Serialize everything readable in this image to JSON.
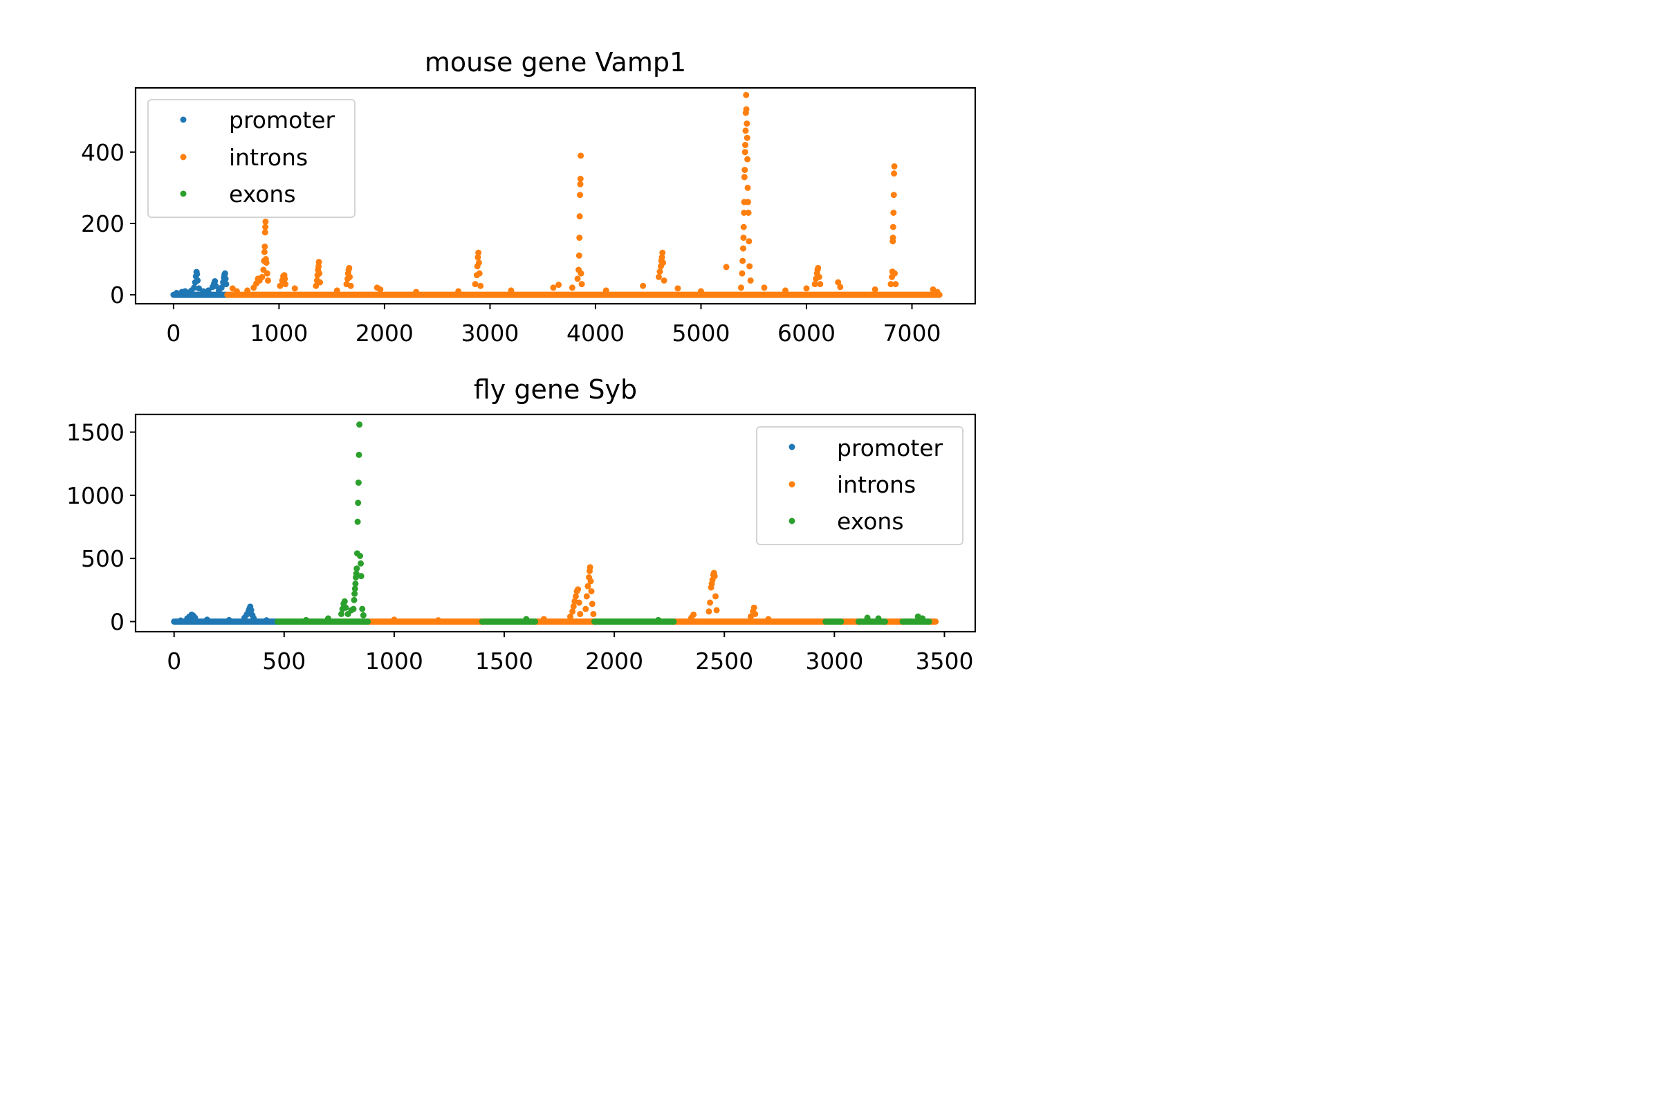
{
  "colors": {
    "promoter": "#1f77b4",
    "introns": "#ff7f0e",
    "exons": "#2ca02c"
  },
  "chart_data": [
    {
      "type": "scatter",
      "title": "mouse gene Vamp1",
      "xlabel": "",
      "ylabel": "",
      "xlim": [
        -360,
        7600
      ],
      "ylim": [
        -25,
        580
      ],
      "xticks": [
        0,
        1000,
        2000,
        3000,
        4000,
        5000,
        6000,
        7000
      ],
      "xtick_labels": [
        "0",
        "1000",
        "2000",
        "3000",
        "4000",
        "5000",
        "6000",
        "7000"
      ],
      "yticks": [
        0,
        200,
        400
      ],
      "ytick_labels": [
        "0",
        "200",
        "400"
      ],
      "grid": false,
      "legend": "upper left",
      "baseline": {
        "promoter": [
          [
            0,
            500
          ]
        ],
        "introns": [
          [
            510,
            7260
          ]
        ],
        "exons": []
      },
      "series": [
        {
          "name": "promoter",
          "color_key": "promoter",
          "points": [
            [
              30,
              5
            ],
            [
              80,
              8
            ],
            [
              110,
              10
            ],
            [
              140,
              6
            ],
            [
              170,
              12
            ],
            [
              195,
              20
            ],
            [
              205,
              35
            ],
            [
              212,
              52
            ],
            [
              218,
              64
            ],
            [
              222,
              58
            ],
            [
              228,
              40
            ],
            [
              240,
              18
            ],
            [
              280,
              10
            ],
            [
              330,
              12
            ],
            [
              370,
              22
            ],
            [
              385,
              32
            ],
            [
              392,
              38
            ],
            [
              400,
              25
            ],
            [
              430,
              12
            ],
            [
              455,
              20
            ],
            [
              470,
              35
            ],
            [
              478,
              48
            ],
            [
              483,
              56
            ],
            [
              488,
              60
            ],
            [
              493,
              45
            ],
            [
              498,
              30
            ]
          ]
        },
        {
          "name": "introns",
          "color_key": "introns",
          "points": [
            [
              560,
              18
            ],
            [
              600,
              10
            ],
            [
              700,
              12
            ],
            [
              760,
              20
            ],
            [
              785,
              32
            ],
            [
              800,
              45
            ],
            [
              815,
              40
            ],
            [
              840,
              50
            ],
            [
              852,
              70
            ],
            [
              858,
              95
            ],
            [
              862,
              120
            ],
            [
              865,
              135
            ],
            [
              868,
              175
            ],
            [
              870,
              190
            ],
            [
              872,
              205
            ],
            [
              875,
              100
            ],
            [
              880,
              90
            ],
            [
              888,
              60
            ],
            [
              895,
              40
            ],
            [
              1010,
              25
            ],
            [
              1030,
              40
            ],
            [
              1040,
              52
            ],
            [
              1050,
              55
            ],
            [
              1055,
              45
            ],
            [
              1060,
              30
            ],
            [
              1150,
              18
            ],
            [
              1350,
              25
            ],
            [
              1360,
              40
            ],
            [
              1365,
              55
            ],
            [
              1370,
              70
            ],
            [
              1375,
              80
            ],
            [
              1378,
              92
            ],
            [
              1382,
              60
            ],
            [
              1388,
              35
            ],
            [
              1550,
              12
            ],
            [
              1640,
              30
            ],
            [
              1650,
              45
            ],
            [
              1655,
              60
            ],
            [
              1660,
              70
            ],
            [
              1665,
              75
            ],
            [
              1670,
              50
            ],
            [
              1680,
              25
            ],
            [
              1930,
              20
            ],
            [
              1960,
              15
            ],
            [
              2300,
              8
            ],
            [
              2700,
              10
            ],
            [
              2860,
              30
            ],
            [
              2875,
              55
            ],
            [
              2880,
              80
            ],
            [
              2885,
              105
            ],
            [
              2890,
              118
            ],
            [
              2895,
              90
            ],
            [
              2900,
              60
            ],
            [
              2910,
              25
            ],
            [
              3200,
              12
            ],
            [
              3600,
              20
            ],
            [
              3650,
              28
            ],
            [
              3780,
              20
            ],
            [
              3830,
              45
            ],
            [
              3840,
              70
            ],
            [
              3845,
              110
            ],
            [
              3848,
              160
            ],
            [
              3850,
              220
            ],
            [
              3853,
              280
            ],
            [
              3856,
              310
            ],
            [
              3858,
              325
            ],
            [
              3860,
              390
            ],
            [
              3863,
              60
            ],
            [
              3870,
              30
            ],
            [
              4100,
              12
            ],
            [
              4450,
              25
            ],
            [
              4600,
              50
            ],
            [
              4610,
              65
            ],
            [
              4620,
              80
            ],
            [
              4625,
              95
            ],
            [
              4630,
              105
            ],
            [
              4635,
              118
            ],
            [
              4640,
              90
            ],
            [
              4650,
              40
            ],
            [
              4780,
              18
            ],
            [
              5000,
              10
            ],
            [
              5240,
              78
            ],
            [
              5380,
              20
            ],
            [
              5390,
              60
            ],
            [
              5395,
              95
            ],
            [
              5400,
              130
            ],
            [
              5403,
              160
            ],
            [
              5405,
              190
            ],
            [
              5408,
              230
            ],
            [
              5410,
              260
            ],
            [
              5412,
              330
            ],
            [
              5415,
              350
            ],
            [
              5418,
              400
            ],
            [
              5420,
              420
            ],
            [
              5423,
              460
            ],
            [
              5425,
              510
            ],
            [
              5428,
              560
            ],
            [
              5430,
              520
            ],
            [
              5435,
              480
            ],
            [
              5438,
              440
            ],
            [
              5440,
              380
            ],
            [
              5443,
              300
            ],
            [
              5446,
              260
            ],
            [
              5450,
              230
            ],
            [
              5455,
              150
            ],
            [
              5460,
              80
            ],
            [
              5470,
              40
            ],
            [
              5600,
              20
            ],
            [
              5800,
              12
            ],
            [
              6000,
              18
            ],
            [
              6080,
              30
            ],
            [
              6090,
              45
            ],
            [
              6100,
              60
            ],
            [
              6105,
              70
            ],
            [
              6110,
              75
            ],
            [
              6120,
              50
            ],
            [
              6130,
              30
            ],
            [
              6300,
              35
            ],
            [
              6320,
              22
            ],
            [
              6650,
              15
            ],
            [
              6800,
              30
            ],
            [
              6810,
              50
            ],
            [
              6815,
              65
            ],
            [
              6818,
              150
            ],
            [
              6820,
              160
            ],
            [
              6822,
              190
            ],
            [
              6825,
              230
            ],
            [
              6828,
              280
            ],
            [
              6830,
              340
            ],
            [
              6833,
              360
            ],
            [
              6836,
              60
            ],
            [
              6845,
              30
            ],
            [
              7200,
              15
            ],
            [
              7240,
              8
            ]
          ]
        },
        {
          "name": "exons",
          "color_key": "exons",
          "points": []
        }
      ]
    },
    {
      "type": "scatter",
      "title": "fly gene Syb",
      "xlabel": "",
      "ylabel": "",
      "xlim": [
        -175,
        3640
      ],
      "ylim": [
        -80,
        1640
      ],
      "xticks": [
        0,
        500,
        1000,
        1500,
        2000,
        2500,
        3000,
        3500
      ],
      "xtick_labels": [
        "0",
        "500",
        "1000",
        "1500",
        "2000",
        "2500",
        "3000",
        "3500"
      ],
      "yticks": [
        0,
        500,
        1000,
        1500
      ],
      "ytick_labels": [
        "0",
        "500",
        "1000",
        "1500"
      ],
      "grid": false,
      "legend": "upper right",
      "baseline": {
        "promoter": [
          [
            0,
            470
          ]
        ],
        "introns": [
          [
            880,
            1400
          ],
          [
            1640,
            1910
          ],
          [
            2270,
            2960
          ],
          [
            3030,
            3110
          ],
          [
            3230,
            3310
          ],
          [
            3430,
            3460
          ]
        ],
        "exons": [
          [
            470,
            880
          ],
          [
            1400,
            1640
          ],
          [
            1910,
            2270
          ],
          [
            2960,
            3030
          ],
          [
            3110,
            3230
          ],
          [
            3310,
            3430
          ]
        ]
      },
      "series": [
        {
          "name": "promoter",
          "color_key": "promoter",
          "points": [
            [
              30,
              8
            ],
            [
              60,
              25
            ],
            [
              70,
              40
            ],
            [
              80,
              55
            ],
            [
              88,
              45
            ],
            [
              95,
              30
            ],
            [
              150,
              15
            ],
            [
              250,
              12
            ],
            [
              320,
              30
            ],
            [
              330,
              55
            ],
            [
              338,
              80
            ],
            [
              342,
              100
            ],
            [
              346,
              118
            ],
            [
              350,
              90
            ],
            [
              356,
              50
            ],
            [
              362,
              25
            ],
            [
              420,
              10
            ]
          ]
        },
        {
          "name": "introns",
          "color_key": "introns",
          "points": [
            [
              1000,
              15
            ],
            [
              1200,
              10
            ],
            [
              1680,
              20
            ],
            [
              1800,
              40
            ],
            [
              1810,
              80
            ],
            [
              1815,
              120
            ],
            [
              1820,
              160
            ],
            [
              1825,
              200
            ],
            [
              1830,
              240
            ],
            [
              1835,
              255
            ],
            [
              1840,
              150
            ],
            [
              1845,
              60
            ],
            [
              1870,
              100
            ],
            [
              1875,
              200
            ],
            [
              1880,
              280
            ],
            [
              1885,
              350
            ],
            [
              1888,
              400
            ],
            [
              1890,
              430
            ],
            [
              1893,
              320
            ],
            [
              1896,
              240
            ],
            [
              1900,
              140
            ],
            [
              1905,
              60
            ],
            [
              2350,
              30
            ],
            [
              2360,
              55
            ],
            [
              2430,
              80
            ],
            [
              2435,
              150
            ],
            [
              2440,
              270
            ],
            [
              2443,
              300
            ],
            [
              2446,
              330
            ],
            [
              2450,
              370
            ],
            [
              2453,
              385
            ],
            [
              2456,
              360
            ],
            [
              2460,
              200
            ],
            [
              2465,
              90
            ],
            [
              2620,
              40
            ],
            [
              2630,
              80
            ],
            [
              2635,
              110
            ],
            [
              2640,
              60
            ],
            [
              2700,
              20
            ]
          ]
        },
        {
          "name": "exons",
          "color_key": "exons",
          "points": [
            [
              600,
              12
            ],
            [
              700,
              25
            ],
            [
              760,
              60
            ],
            [
              765,
              100
            ],
            [
              770,
              140
            ],
            [
              775,
              160
            ],
            [
              780,
              110
            ],
            [
              790,
              60
            ],
            [
              805,
              90
            ],
            [
              815,
              100
            ],
            [
              818,
              170
            ],
            [
              820,
              220
            ],
            [
              822,
              260
            ],
            [
              824,
              300
            ],
            [
              826,
              350
            ],
            [
              828,
              380
            ],
            [
              830,
              420
            ],
            [
              832,
              540
            ],
            [
              834,
              790
            ],
            [
              836,
              940
            ],
            [
              838,
              1100
            ],
            [
              840,
              1320
            ],
            [
              842,
              1560
            ],
            [
              845,
              520
            ],
            [
              848,
              460
            ],
            [
              850,
              360
            ],
            [
              855,
              100
            ],
            [
              860,
              50
            ],
            [
              1600,
              20
            ],
            [
              2200,
              12
            ],
            [
              3150,
              30
            ],
            [
              3200,
              25
            ],
            [
              3380,
              40
            ],
            [
              3400,
              25
            ]
          ]
        }
      ]
    }
  ]
}
